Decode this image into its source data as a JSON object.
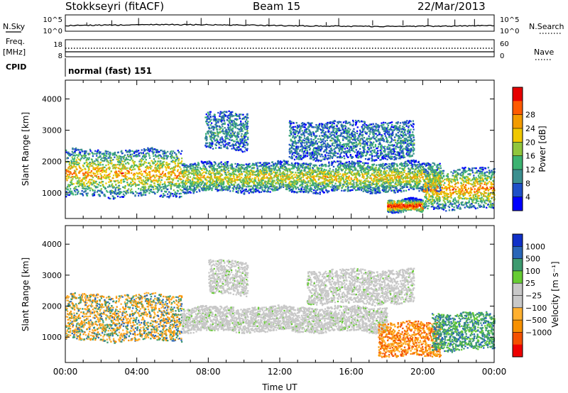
{
  "header": {
    "station": "Stokkseyri (fitACF)",
    "beam": "Beam 15",
    "date": "22/Mar/2013"
  },
  "noise_panel": {
    "left_label": "N.Sky",
    "right_label": "N.Search",
    "left_ticks": [
      "10^5",
      "10^0"
    ],
    "right_ticks": [
      "10^5",
      "10^0"
    ]
  },
  "freq_panel": {
    "left_label_1": "Freq.",
    "left_label_2": "[MHz]",
    "right_label": "Nave",
    "left_ticks": [
      "18",
      "8"
    ],
    "right_ticks": [
      "60",
      "0"
    ]
  },
  "cpid": {
    "label": "CPID",
    "value": "normal (fast) 151"
  },
  "colors": {
    "power_scale": [
      "#0000ff",
      "#1e4fc8",
      "#3b8f8f",
      "#3cb371",
      "#90c63c",
      "#f0c800",
      "#f39b00",
      "#ff5a00",
      "#e60000"
    ],
    "velocity_scale": [
      "#ee0000",
      "#f45000",
      "#f79000",
      "#ffb030",
      "#c8c8c8",
      "#c8c8c8",
      "#66cc33",
      "#3d9a6f",
      "#2a66b8",
      "#1030c8"
    ],
    "ground_scatter": "#c8c8c8"
  },
  "chart_data": [
    {
      "type": "heatmap",
      "title": "",
      "xlabel": "Time UT",
      "ylabel": "Slant Range [km]",
      "x_range_hours": [
        0,
        24
      ],
      "ylim": [
        180,
        4600
      ],
      "x_tick_labels": [
        "00:00",
        "04:00",
        "08:00",
        "12:00",
        "16:00",
        "20:00",
        "00:00"
      ],
      "y_tick_labels": [
        "1000",
        "2000",
        "3000",
        "4000"
      ],
      "colorbar": {
        "label": "Power [dB]",
        "tick_labels": [
          "4",
          "8",
          "12",
          "16",
          "20",
          "24",
          "28"
        ]
      },
      "regions": [
        {
          "name": "early_band",
          "t_start": 0.0,
          "t_end": 6.5,
          "r_low": 900,
          "r_high": 2400,
          "intensity": 0.55
        },
        {
          "name": "main_band",
          "t_start": 6.5,
          "t_end": 21.0,
          "r_low": 1050,
          "r_high": 2000,
          "intensity": 0.45
        },
        {
          "name": "upper_patch",
          "t_start": 7.8,
          "t_end": 10.2,
          "r_low": 2400,
          "r_high": 3600,
          "intensity": 0.15
        },
        {
          "name": "arc_echo",
          "t_start": 12.5,
          "t_end": 19.5,
          "r_low": 2100,
          "r_high": 3300,
          "intensity": 0.12
        },
        {
          "name": "late_low_band",
          "t_start": 18.0,
          "t_end": 20.0,
          "r_low": 400,
          "r_high": 800,
          "intensity": 0.8
        },
        {
          "name": "late_band",
          "t_start": 20.0,
          "t_end": 24.0,
          "r_low": 500,
          "r_high": 1800,
          "intensity": 0.6
        }
      ]
    },
    {
      "type": "heatmap",
      "title": "",
      "xlabel": "Time UT",
      "ylabel": "Slant Range [km]",
      "x_range_hours": [
        0,
        24
      ],
      "ylim": [
        180,
        4600
      ],
      "x_tick_labels": [
        "00:00",
        "04:00",
        "08:00",
        "12:00",
        "16:00",
        "20:00",
        "00:00"
      ],
      "y_tick_labels": [
        "1000",
        "2000",
        "3000",
        "4000"
      ],
      "colorbar": {
        "label": "Velocity [m s⁻¹]",
        "tick_labels": [
          "1000",
          "500",
          "100",
          "25",
          "−25",
          "−100",
          "−500",
          "−1000"
        ]
      },
      "regions": [
        {
          "name": "early_band",
          "t_start": 0.0,
          "t_end": 6.5,
          "r_low": 900,
          "r_high": 2400,
          "velocity_class": "mixed_blue_orange"
        },
        {
          "name": "main_band",
          "t_start": 6.5,
          "t_end": 18.0,
          "r_low": 1200,
          "r_high": 2000,
          "velocity_class": "ground_scatter"
        },
        {
          "name": "upper_patch",
          "t_start": 8.0,
          "t_end": 10.2,
          "r_low": 2400,
          "r_high": 3500,
          "velocity_class": "ground_scatter"
        },
        {
          "name": "arc_echo",
          "t_start": 13.5,
          "t_end": 19.5,
          "r_low": 2100,
          "r_high": 3200,
          "velocity_class": "ground_scatter"
        },
        {
          "name": "late_orange",
          "t_start": 17.5,
          "t_end": 21.0,
          "r_low": 400,
          "r_high": 1500,
          "velocity_class": "negative_orange"
        },
        {
          "name": "late_mixed",
          "t_start": 20.5,
          "t_end": 24.0,
          "r_low": 600,
          "r_high": 1800,
          "velocity_class": "mixed_green_blue"
        }
      ]
    }
  ]
}
